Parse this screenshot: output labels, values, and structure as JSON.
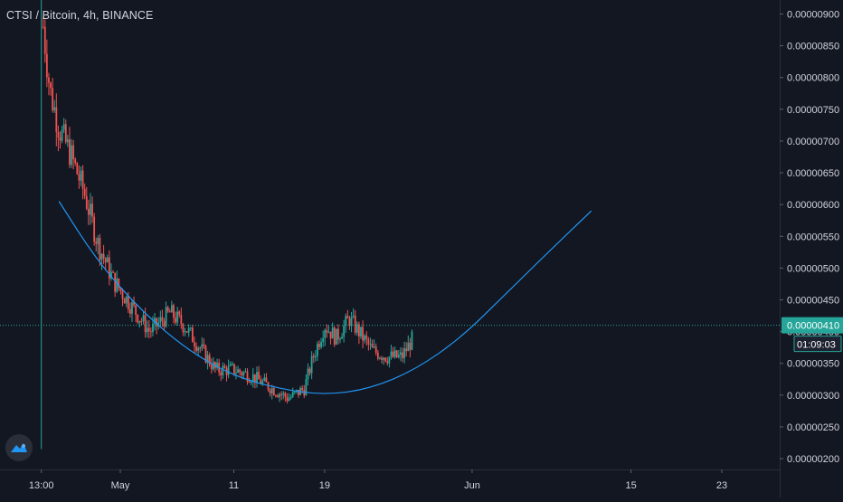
{
  "header": {
    "symbol_title": "CTSI / Bitcoin, 4h, BINANCE"
  },
  "colors": {
    "background": "#131722",
    "up": "#26a69a",
    "down": "#ef5350",
    "curve": "#2196f3",
    "price_line": "#26a69a",
    "axis_text": "#d1d4dc",
    "grid": "#2a2e39"
  },
  "chart_data": {
    "type": "candlestick",
    "xlabel": "",
    "ylabel": "",
    "x_ticks": [
      "13:00",
      "May",
      "11",
      "19",
      "Jun",
      "15",
      "23"
    ],
    "x_tick_days": [
      -6.96,
      0,
      10,
      18,
      31,
      45,
      53
    ],
    "y_ticks": [
      "0.00000900",
      "0.00000850",
      "0.00000800",
      "0.00000750",
      "0.00000700",
      "0.00000650",
      "0.00000600",
      "0.00000550",
      "0.00000500",
      "0.00000450",
      "0.00000400",
      "0.00000350",
      "0.00000300",
      "0.00000250",
      "0.00000200"
    ],
    "ylim": [
      1.83e-06,
      9.22e-06
    ],
    "xlim_days": [
      -10.6,
      58.1
    ],
    "last_price": {
      "value": 4.1e-06,
      "label": "0.00000410"
    },
    "countdown": "01:09:03",
    "listing_line_day": -6.96,
    "listing_wick": [
      2.15e-06,
      9.22e-06
    ],
    "price_path": [
      [
        -6.8,
        8.8e-06
      ],
      [
        -6.2,
        7.8e-06
      ],
      [
        -5.4,
        7.2e-06
      ],
      [
        -4.4,
        6.8e-06
      ],
      [
        -3.2,
        6.2e-06
      ],
      [
        -2.0,
        5.4e-06
      ],
      [
        -0.6,
        4.8e-06
      ],
      [
        1.0,
        4.4e-06
      ],
      [
        2.6,
        4e-06
      ],
      [
        4.4,
        4.3e-06
      ],
      [
        5.6,
        4.1e-06
      ],
      [
        6.8,
        3.8e-06
      ],
      [
        8.4,
        3.4e-06
      ],
      [
        10.0,
        3.4e-06
      ],
      [
        11.6,
        3.3e-06
      ],
      [
        13.4,
        3.1e-06
      ],
      [
        14.8,
        2.95e-06
      ],
      [
        16.2,
        3.1e-06
      ],
      [
        17.0,
        3.6e-06
      ],
      [
        18.0,
        4.1e-06
      ],
      [
        19.0,
        3.9e-06
      ],
      [
        20.2,
        4.2e-06
      ],
      [
        21.0,
        4e-06
      ],
      [
        22.2,
        3.7e-06
      ],
      [
        23.6,
        3.6e-06
      ],
      [
        24.8,
        3.6e-06
      ],
      [
        25.8,
        3.9e-06
      ]
    ],
    "curve_points": [
      [
        -5.4,
        6.05e-06
      ],
      [
        -2.0,
        5.1e-06
      ],
      [
        2.0,
        4.3e-06
      ],
      [
        6.0,
        3.7e-06
      ],
      [
        10.0,
        3.3e-06
      ],
      [
        14.0,
        3.1e-06
      ],
      [
        18.0,
        3e-06
      ],
      [
        22.0,
        3.1e-06
      ],
      [
        26.0,
        3.4e-06
      ],
      [
        30.0,
        3.9e-06
      ],
      [
        34.0,
        4.6e-06
      ],
      [
        38.0,
        5.3e-06
      ],
      [
        41.5,
        5.9e-06
      ]
    ]
  }
}
